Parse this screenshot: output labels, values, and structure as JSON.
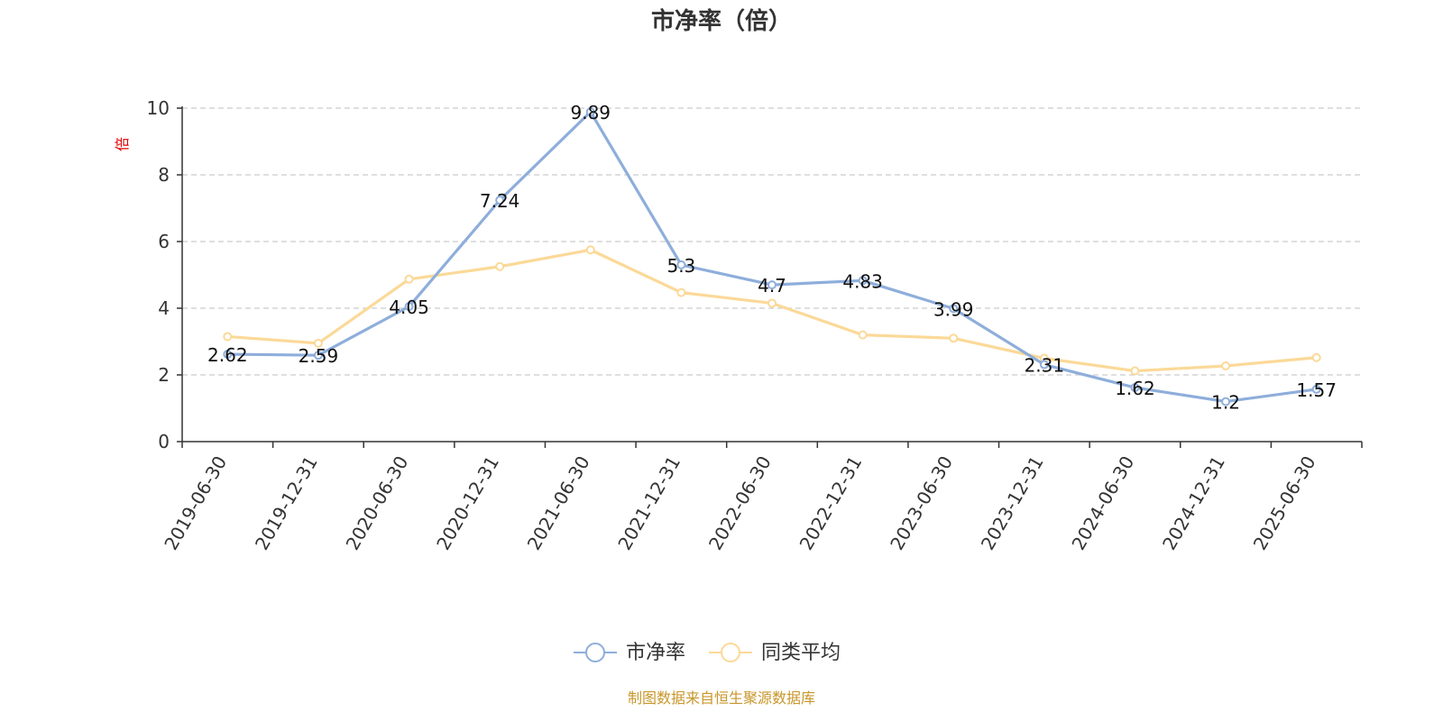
{
  "colors": {
    "series1": "#8eaedb",
    "series2": "#fbd998",
    "grid": "#cccccc",
    "axis": "#333333",
    "ylabel": "#e00000",
    "source": "#c8962a"
  },
  "chart_data": {
    "type": "line",
    "title": "市净率（倍）",
    "ylabel": "倍",
    "xlabel": "",
    "ylim": [
      0,
      10
    ],
    "yticks": [
      "0",
      "2",
      "4",
      "6",
      "8",
      "10"
    ],
    "grid": true,
    "legend_position": "bottom",
    "categories": [
      "2019-06-30",
      "2019-12-31",
      "2020-06-30",
      "2020-12-31",
      "2021-06-30",
      "2021-12-31",
      "2022-06-30",
      "2022-12-31",
      "2023-06-30",
      "2023-12-31",
      "2024-06-30",
      "2024-12-31",
      "2025-06-30"
    ],
    "series": [
      {
        "name": "市净率",
        "values": [
          2.62,
          2.59,
          4.05,
          7.24,
          9.89,
          5.3,
          4.7,
          4.83,
          3.99,
          2.31,
          1.62,
          1.2,
          1.57
        ],
        "labels": [
          "2.62",
          "2.59",
          "4.05",
          "7.24",
          "9.89",
          "5.3",
          "4.7",
          "4.83",
          "3.99",
          "2.31",
          "1.62",
          "1.2",
          "1.57"
        ]
      },
      {
        "name": "同类平均",
        "values": [
          3.15,
          2.95,
          4.87,
          5.25,
          5.75,
          4.47,
          4.15,
          3.2,
          3.1,
          2.5,
          2.12,
          2.27,
          2.52
        ]
      }
    ]
  },
  "footer": {
    "source": "制图数据来自恒生聚源数据库"
  }
}
